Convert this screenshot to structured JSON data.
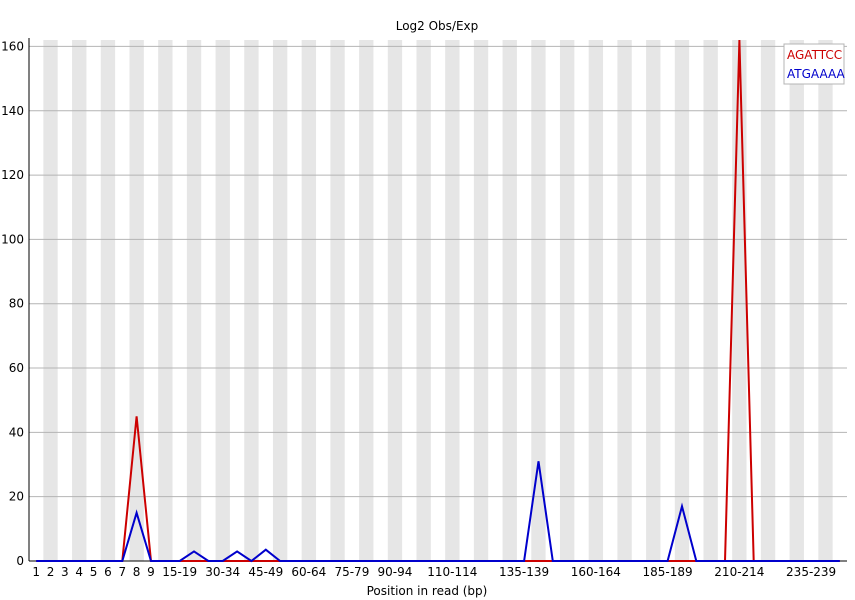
{
  "chart_data": {
    "type": "line",
    "title": "Log2 Obs/Exp",
    "xlabel": "Position in read (bp)",
    "ylabel": "",
    "ylim": [
      0,
      162
    ],
    "yticks": [
      0,
      20,
      40,
      60,
      80,
      100,
      120,
      140,
      160
    ],
    "grid": "horizontal",
    "legend_position": "top-right",
    "categories": [
      "1",
      "2",
      "3",
      "4",
      "5",
      "6",
      "7",
      "8",
      "9",
      "10-14",
      "15-19",
      "20-24",
      "25-29",
      "30-34",
      "35-39",
      "40-44",
      "45-49",
      "50-54",
      "55-59",
      "60-64",
      "65-69",
      "70-74",
      "75-79",
      "80-84",
      "85-89",
      "90-94",
      "95-99",
      "100-104",
      "105-109",
      "110-114",
      "115-119",
      "120-124",
      "125-129",
      "130-134",
      "135-139",
      "140-144",
      "145-149",
      "150-154",
      "155-159",
      "160-164",
      "165-169",
      "170-174",
      "175-179",
      "180-184",
      "185-189",
      "190-194",
      "195-199",
      "200-204",
      "205-209",
      "210-214",
      "215-219",
      "220-224",
      "225-229",
      "230-234",
      "235-239",
      "240-244",
      "245-249"
    ],
    "visible_tick_labels": [
      "1",
      "2",
      "3",
      "4",
      "5",
      "6",
      "7",
      "8",
      "9",
      "15-19",
      "30-34",
      "45-49",
      "60-64",
      "75-79",
      "90-94",
      "110-114",
      "135-139",
      "160-164",
      "185-189",
      "210-214",
      "235-239"
    ],
    "series": [
      {
        "name": "AGATTCC",
        "color": "#cc0000",
        "values": [
          0,
          0,
          0,
          0,
          0,
          0,
          0,
          45,
          0,
          0,
          0,
          0,
          0,
          0,
          0,
          0,
          0,
          0,
          0,
          0,
          0,
          0,
          0,
          0,
          0,
          0,
          0,
          0,
          0,
          0,
          0,
          0,
          0,
          0,
          0,
          0,
          0,
          0,
          0,
          0,
          0,
          0,
          0,
          0,
          0,
          0,
          0,
          0,
          0,
          162,
          0,
          0,
          0,
          0,
          0,
          0,
          0
        ]
      },
      {
        "name": "ATGAAAA",
        "color": "#0000cc",
        "values": [
          0,
          0,
          0,
          0,
          0,
          0,
          0,
          15,
          0,
          0,
          0,
          3,
          0,
          0,
          3,
          0,
          3.5,
          0,
          0,
          0,
          0,
          0,
          0,
          0,
          0,
          0,
          0,
          0,
          0,
          0,
          0,
          0,
          0,
          0,
          0,
          31,
          0,
          0,
          0,
          0,
          0,
          0,
          0,
          0,
          0,
          17,
          0,
          0,
          0,
          0,
          0,
          0,
          0,
          0,
          0,
          0,
          0
        ]
      }
    ]
  }
}
